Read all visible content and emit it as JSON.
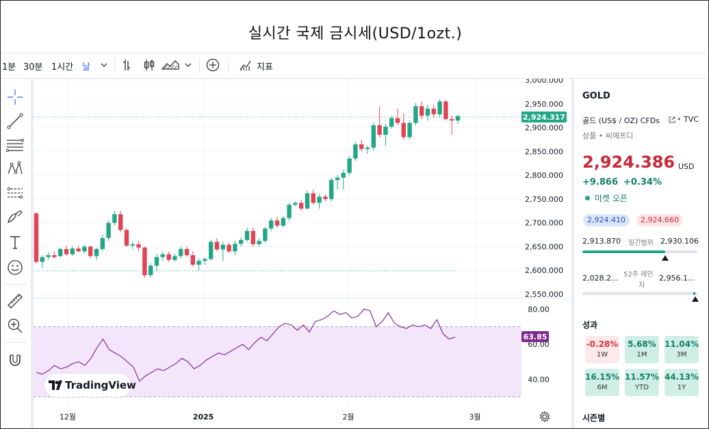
{
  "page_title": "실시간 국제 금시세(USD/1ozt.)",
  "toolbar": {
    "intervals": [
      "1분",
      "30분",
      "1시간",
      "날"
    ],
    "indicators_label": "지표"
  },
  "price_axis": {
    "labels": [
      "3,000.000",
      "2,950.000",
      "2,900.000",
      "2,850.000",
      "2,800.000",
      "2,750.000",
      "2,700.000",
      "2,650.000",
      "2,600.000",
      "2,550.000"
    ],
    "current_price_tag": "2,924.317"
  },
  "rsi_axis": {
    "labels": [
      "80.00",
      "60.00",
      "40.00"
    ],
    "current_tag": "63.85"
  },
  "time_axis": {
    "labels": [
      "12월",
      "2025",
      "2월",
      "3월"
    ]
  },
  "logo_text": "TradingView",
  "chart_data": {
    "type": "candlestick",
    "ylim": [
      2550,
      3000
    ],
    "candles": [
      [
        2720,
        2722,
        2615,
        2618
      ],
      [
        2618,
        2632,
        2605,
        2628
      ],
      [
        2628,
        2638,
        2622,
        2632
      ],
      [
        2632,
        2640,
        2625,
        2628
      ],
      [
        2630,
        2648,
        2628,
        2645
      ],
      [
        2645,
        2652,
        2630,
        2634
      ],
      [
        2634,
        2650,
        2630,
        2646
      ],
      [
        2646,
        2652,
        2638,
        2640
      ],
      [
        2640,
        2654,
        2636,
        2650
      ],
      [
        2650,
        2652,
        2625,
        2630
      ],
      [
        2630,
        2648,
        2622,
        2645
      ],
      [
        2645,
        2675,
        2640,
        2668
      ],
      [
        2668,
        2705,
        2662,
        2700
      ],
      [
        2700,
        2725,
        2695,
        2718
      ],
      [
        2718,
        2725,
        2680,
        2685
      ],
      [
        2685,
        2688,
        2650,
        2652
      ],
      [
        2652,
        2660,
        2645,
        2655
      ],
      [
        2655,
        2662,
        2640,
        2648
      ],
      [
        2648,
        2650,
        2585,
        2590
      ],
      [
        2590,
        2615,
        2585,
        2610
      ],
      [
        2610,
        2635,
        2598,
        2628
      ],
      [
        2628,
        2640,
        2620,
        2634
      ],
      [
        2634,
        2640,
        2618,
        2622
      ],
      [
        2622,
        2635,
        2618,
        2630
      ],
      [
        2630,
        2650,
        2625,
        2645
      ],
      [
        2645,
        2650,
        2628,
        2632
      ],
      [
        2632,
        2640,
        2608,
        2612
      ],
      [
        2612,
        2625,
        2600,
        2620
      ],
      [
        2620,
        2628,
        2612,
        2624
      ],
      [
        2624,
        2665,
        2620,
        2660
      ],
      [
        2660,
        2668,
        2640,
        2644
      ],
      [
        2644,
        2660,
        2620,
        2654
      ],
      [
        2654,
        2658,
        2636,
        2640
      ],
      [
        2640,
        2662,
        2632,
        2656
      ],
      [
        2656,
        2670,
        2650,
        2664
      ],
      [
        2664,
        2690,
        2660,
        2683
      ],
      [
        2683,
        2690,
        2650,
        2655
      ],
      [
        2655,
        2668,
        2650,
        2662
      ],
      [
        2662,
        2692,
        2658,
        2688
      ],
      [
        2688,
        2710,
        2682,
        2705
      ],
      [
        2705,
        2712,
        2690,
        2694
      ],
      [
        2694,
        2715,
        2690,
        2710
      ],
      [
        2710,
        2742,
        2705,
        2738
      ],
      [
        2738,
        2745,
        2735,
        2742
      ],
      [
        2742,
        2748,
        2725,
        2730
      ],
      [
        2730,
        2768,
        2728,
        2762
      ],
      [
        2762,
        2770,
        2738,
        2742
      ],
      [
        2742,
        2760,
        2730,
        2755
      ],
      [
        2755,
        2760,
        2745,
        2750
      ],
      [
        2750,
        2795,
        2745,
        2790
      ],
      [
        2790,
        2800,
        2770,
        2795
      ],
      [
        2795,
        2812,
        2770,
        2805
      ],
      [
        2805,
        2840,
        2800,
        2835
      ],
      [
        2835,
        2870,
        2830,
        2865
      ],
      [
        2865,
        2875,
        2850,
        2855
      ],
      [
        2855,
        2862,
        2845,
        2858
      ],
      [
        2858,
        2910,
        2852,
        2905
      ],
      [
        2905,
        2945,
        2880,
        2885
      ],
      [
        2885,
        2908,
        2862,
        2902
      ],
      [
        2902,
        2925,
        2898,
        2920
      ],
      [
        2920,
        2940,
        2905,
        2910
      ],
      [
        2910,
        2930,
        2875,
        2880
      ],
      [
        2880,
        2915,
        2875,
        2910
      ],
      [
        2910,
        2952,
        2905,
        2945
      ],
      [
        2945,
        2955,
        2918,
        2925
      ],
      [
        2925,
        2948,
        2915,
        2940
      ],
      [
        2940,
        2948,
        2920,
        2928
      ],
      [
        2928,
        2960,
        2922,
        2955
      ],
      [
        2955,
        2958,
        2915,
        2918
      ],
      [
        2918,
        2925,
        2885,
        2915
      ],
      [
        2915,
        2928,
        2908,
        2924
      ]
    ]
  },
  "rsi_data": [
    44,
    43,
    45,
    48,
    46,
    47,
    49,
    50,
    48,
    52,
    58,
    63,
    57,
    55,
    53,
    50,
    47,
    39,
    42,
    44,
    46,
    45,
    47,
    49,
    52,
    50,
    46,
    48,
    51,
    53,
    55,
    54,
    56,
    58,
    60,
    57,
    61,
    64,
    62,
    66,
    70,
    72,
    71,
    68,
    71,
    67,
    73,
    74,
    76,
    79,
    77,
    78,
    75,
    76,
    80,
    79,
    70,
    73,
    78,
    72,
    70,
    69,
    71,
    70,
    71,
    69,
    74,
    66,
    63,
    64
  ],
  "right_panel": {
    "symbol": "GOLD",
    "name": "골드 (US$ / OZ) CFDs",
    "source": "TVC",
    "category": "상품 • 씨에프디",
    "price": "2,924.386",
    "currency": "USD",
    "change": "+9.866",
    "change_pct": "+0.34%",
    "market_status": "마켓 오픈",
    "bid": "2,924.410",
    "ask": "2,924.660",
    "day_low": "2,913.870",
    "day_range_label": "일간범위",
    "day_high": "2,930.106",
    "day_range_progress": 0.72,
    "w52_low": "2,028.2...",
    "w52_label_1": "52주 레인",
    "w52_label_2": "지",
    "w52_high": "2,956.1...",
    "w52_progress": 0.98,
    "performance_title": "성과",
    "performance": [
      {
        "value": "-0.28%",
        "label": "1W",
        "dir": "neg"
      },
      {
        "value": "5.68%",
        "label": "1M",
        "dir": "pos"
      },
      {
        "value": "11.04%",
        "label": "3M",
        "dir": "pos"
      },
      {
        "value": "16.15%",
        "label": "6M",
        "dir": "pos"
      },
      {
        "value": "11.57%",
        "label": "YTD",
        "dir": "pos"
      },
      {
        "value": "44.13%",
        "label": "1Y",
        "dir": "pos"
      }
    ],
    "seasonal_title": "시즌별"
  },
  "colors": {
    "up": "#22a786",
    "down": "#e04455",
    "rsi_line": "#8e3ba0",
    "rsi_band": "#f3e6fb",
    "price_tag": "#22a786",
    "rsi_tag": "#7b2d8e"
  }
}
